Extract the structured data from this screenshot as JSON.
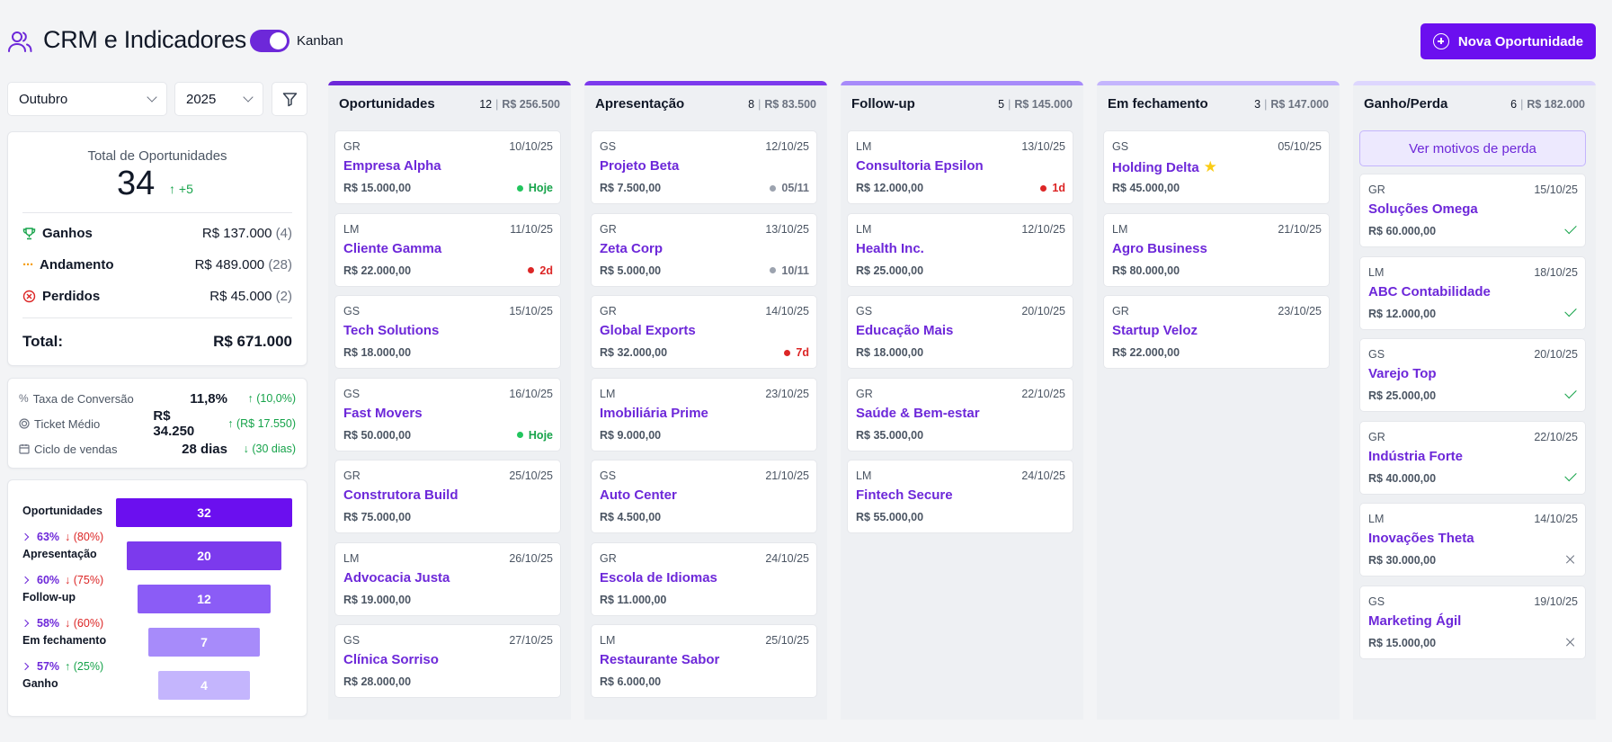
{
  "header": {
    "title": "CRM e Indicadores",
    "toggle_label": "Kanban",
    "new_button": "Nova Oportunidade"
  },
  "filters": {
    "month": "Outubro",
    "year": "2025"
  },
  "summary": {
    "label": "Total de Oportunidades",
    "total": "34",
    "delta": "+5",
    "won_label": "Ganhos",
    "won_value": "R$ 137.000",
    "won_count": "(4)",
    "progress_label": "Andamento",
    "progress_value": "R$ 489.000",
    "progress_count": "(28)",
    "lost_label": "Perdidos",
    "lost_value": "R$ 45.000",
    "lost_count": "(2)",
    "total_label": "Total:",
    "total_value": "R$ 671.000"
  },
  "metrics": [
    {
      "label": "Taxa de Conversão",
      "value": "11,8%",
      "delta": "(10,0%)"
    },
    {
      "label": "Ticket Médio",
      "value": "R$ 34.250",
      "delta": "(R$ 17.550)"
    },
    {
      "label": "Ciclo de vendas",
      "value": "28 dias",
      "delta": "(30 dias)"
    }
  ],
  "funnel": {
    "stages": [
      {
        "label": "Oportunidades",
        "value": 32,
        "color": "#6b0fef"
      },
      {
        "label": "Apresentação",
        "value": 20,
        "color": "#7c3aed"
      },
      {
        "label": "Follow-up",
        "value": 12,
        "color": "#8b5cf6"
      },
      {
        "label": "Em fechamento",
        "value": 7,
        "color": "#a78bfa"
      },
      {
        "label": "Ganho",
        "value": 4,
        "color": "#c4b5fd"
      }
    ],
    "conversions": [
      {
        "pct": "63%",
        "drop": "(80%)",
        "up": false
      },
      {
        "pct": "60%",
        "drop": "(75%)",
        "up": false
      },
      {
        "pct": "58%",
        "drop": "(60%)",
        "up": false
      },
      {
        "pct": "57%",
        "drop": "(25%)",
        "up": true
      }
    ]
  },
  "columns": [
    {
      "title": "Oportunidades",
      "count": "12",
      "amount": "R$ 256.500",
      "color": "#6d28d9",
      "cards": [
        {
          "owner": "GR",
          "date": "10/10/25",
          "name": "Empresa Alpha",
          "value": "R$ 15.000,00",
          "status": "Hoje",
          "status_type": "green"
        },
        {
          "owner": "LM",
          "date": "11/10/25",
          "name": "Cliente Gamma",
          "value": "R$ 22.000,00",
          "status": "2d",
          "status_type": "red"
        },
        {
          "owner": "GS",
          "date": "15/10/25",
          "name": "Tech Solutions",
          "value": "R$ 18.000,00",
          "status": "",
          "status_type": ""
        },
        {
          "owner": "GS",
          "date": "16/10/25",
          "name": "Fast Movers",
          "value": "R$ 50.000,00",
          "status": "Hoje",
          "status_type": "green"
        },
        {
          "owner": "GR",
          "date": "25/10/25",
          "name": "Construtora Build",
          "value": "R$ 75.000,00",
          "status": "",
          "status_type": ""
        },
        {
          "owner": "LM",
          "date": "26/10/25",
          "name": "Advocacia Justa",
          "value": "R$ 19.000,00",
          "status": "",
          "status_type": ""
        },
        {
          "owner": "GS",
          "date": "27/10/25",
          "name": "Clínica Sorriso",
          "value": "R$ 28.000,00",
          "status": "",
          "status_type": ""
        }
      ]
    },
    {
      "title": "Apresentação",
      "count": "8",
      "amount": "R$ 83.500",
      "color": "#7c3aed",
      "cards": [
        {
          "owner": "GS",
          "date": "12/10/25",
          "name": "Projeto Beta",
          "value": "R$ 7.500,00",
          "status": "05/11",
          "status_type": "gray"
        },
        {
          "owner": "GR",
          "date": "13/10/25",
          "name": "Zeta Corp",
          "value": "R$ 5.000,00",
          "status": "10/11",
          "status_type": "gray"
        },
        {
          "owner": "GR",
          "date": "14/10/25",
          "name": "Global Exports",
          "value": "R$ 32.000,00",
          "status": "7d",
          "status_type": "red"
        },
        {
          "owner": "LM",
          "date": "23/10/25",
          "name": "Imobiliária Prime",
          "value": "R$ 9.000,00",
          "status": "",
          "status_type": ""
        },
        {
          "owner": "GS",
          "date": "21/10/25",
          "name": "Auto Center",
          "value": "R$ 4.500,00",
          "status": "",
          "status_type": ""
        },
        {
          "owner": "GR",
          "date": "24/10/25",
          "name": "Escola de Idiomas",
          "value": "R$ 11.000,00",
          "status": "",
          "status_type": ""
        },
        {
          "owner": "LM",
          "date": "25/10/25",
          "name": "Restaurante Sabor",
          "value": "R$ 6.000,00",
          "status": "",
          "status_type": ""
        }
      ]
    },
    {
      "title": "Follow-up",
      "count": "5",
      "amount": "R$ 145.000",
      "color": "#a78bfa",
      "cards": [
        {
          "owner": "LM",
          "date": "13/10/25",
          "name": "Consultoria Epsilon",
          "value": "R$ 12.000,00",
          "status": "1d",
          "status_type": "red"
        },
        {
          "owner": "LM",
          "date": "12/10/25",
          "name": "Health Inc.",
          "value": "R$ 25.000,00",
          "status": "",
          "status_type": ""
        },
        {
          "owner": "GS",
          "date": "20/10/25",
          "name": "Educação Mais",
          "value": "R$ 18.000,00",
          "status": "",
          "status_type": ""
        },
        {
          "owner": "GR",
          "date": "22/10/25",
          "name": "Saúde & Bem-estar",
          "value": "R$ 35.000,00",
          "status": "",
          "status_type": ""
        },
        {
          "owner": "LM",
          "date": "24/10/25",
          "name": "Fintech Secure",
          "value": "R$ 55.000,00",
          "status": "",
          "status_type": ""
        }
      ]
    },
    {
      "title": "Em fechamento",
      "count": "3",
      "amount": "R$ 147.000",
      "color": "#c4b5fd",
      "cards": [
        {
          "owner": "GS",
          "date": "05/10/25",
          "name": "Holding Delta",
          "value": "R$ 45.000,00",
          "status": "",
          "status_type": "",
          "star": true
        },
        {
          "owner": "LM",
          "date": "21/10/25",
          "name": "Agro Business",
          "value": "R$ 80.000,00",
          "status": "",
          "status_type": ""
        },
        {
          "owner": "GR",
          "date": "23/10/25",
          "name": "Startup Veloz",
          "value": "R$ 22.000,00",
          "status": "",
          "status_type": ""
        }
      ]
    },
    {
      "title": "Ganho/Perda",
      "count": "6",
      "amount": "R$ 182.000",
      "color": "#ddd6fe",
      "loss_button": "Ver motivos de perda",
      "cards": [
        {
          "owner": "GR",
          "date": "15/10/25",
          "name": "Soluções Omega",
          "value": "R$ 60.000,00",
          "result": "won"
        },
        {
          "owner": "LM",
          "date": "18/10/25",
          "name": "ABC Contabilidade",
          "value": "R$ 12.000,00",
          "result": "won"
        },
        {
          "owner": "GS",
          "date": "20/10/25",
          "name": "Varejo Top",
          "value": "R$ 25.000,00",
          "result": "won"
        },
        {
          "owner": "GR",
          "date": "22/10/25",
          "name": "Indústria Forte",
          "value": "R$ 40.000,00",
          "result": "won"
        },
        {
          "owner": "LM",
          "date": "14/10/25",
          "name": "Inovações Theta",
          "value": "R$ 30.000,00",
          "result": "lost"
        },
        {
          "owner": "GS",
          "date": "19/10/25",
          "name": "Marketing Ágil",
          "value": "R$ 15.000,00",
          "result": "lost"
        }
      ]
    }
  ]
}
